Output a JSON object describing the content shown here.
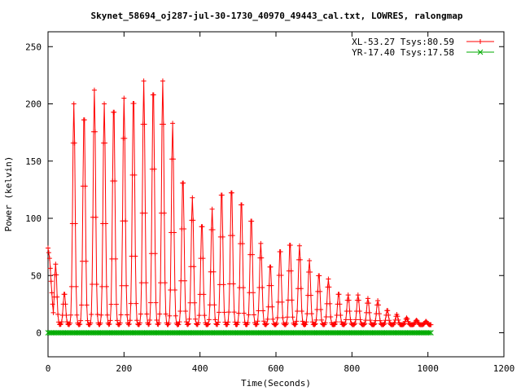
{
  "chart_data": {
    "type": "line",
    "title": "Skynet_58694_oj287-jul-30-1730_40970_49443_cal.txt, LOWRES, ralongmap",
    "xlabel": "Time(Seconds)",
    "ylabel": "Power (kelvin)",
    "xlim": [
      0,
      1200
    ],
    "ylim": [
      -21,
      263
    ],
    "x_ticks": [
      0,
      200,
      400,
      600,
      800,
      1000,
      1200
    ],
    "y_ticks": [
      0,
      50,
      100,
      150,
      200,
      250
    ],
    "legend_position": "top-right",
    "grid": false,
    "series": [
      {
        "name": "XL-53.27 Tsys:80.59",
        "color": "#ff0000",
        "marker": "plus",
        "baseline": 7,
        "sample_interval_s": 2,
        "start_trace": [
          [
            0,
            74
          ],
          [
            1,
            72
          ],
          [
            3,
            68
          ],
          [
            5,
            62
          ],
          [
            8,
            45
          ],
          [
            12,
            25
          ],
          [
            16,
            10
          ]
        ],
        "peaks": [
          {
            "x": 20,
            "peak": 60
          },
          {
            "x": 43,
            "peak": 35
          },
          {
            "x": 68,
            "peak": 200
          },
          {
            "x": 95,
            "peak": 195
          },
          {
            "x": 122,
            "peak": 212
          },
          {
            "x": 148,
            "peak": 200
          },
          {
            "x": 173,
            "peak": 202
          },
          {
            "x": 200,
            "peak": 205
          },
          {
            "x": 225,
            "peak": 210
          },
          {
            "x": 252,
            "peak": 220
          },
          {
            "x": 277,
            "peak": 218
          },
          {
            "x": 302,
            "peak": 220
          },
          {
            "x": 328,
            "peak": 183
          },
          {
            "x": 355,
            "peak": 137
          },
          {
            "x": 380,
            "peak": 118
          },
          {
            "x": 405,
            "peak": 97
          },
          {
            "x": 432,
            "peak": 108
          },
          {
            "x": 457,
            "peak": 126
          },
          {
            "x": 483,
            "peak": 128
          },
          {
            "x": 509,
            "peak": 117
          },
          {
            "x": 535,
            "peak": 102
          },
          {
            "x": 560,
            "peak": 78
          },
          {
            "x": 585,
            "peak": 60
          },
          {
            "x": 611,
            "peak": 74
          },
          {
            "x": 637,
            "peak": 80
          },
          {
            "x": 662,
            "peak": 76
          },
          {
            "x": 688,
            "peak": 63
          },
          {
            "x": 713,
            "peak": 52
          },
          {
            "x": 738,
            "peak": 47
          },
          {
            "x": 765,
            "peak": 35
          },
          {
            "x": 790,
            "peak": 33
          },
          {
            "x": 816,
            "peak": 33
          },
          {
            "x": 842,
            "peak": 30
          },
          {
            "x": 868,
            "peak": 28
          },
          {
            "x": 893,
            "peak": 20
          },
          {
            "x": 918,
            "peak": 16
          },
          {
            "x": 944,
            "peak": 13
          },
          {
            "x": 970,
            "peak": 11
          },
          {
            "x": 995,
            "peak": 10
          }
        ],
        "x_end": 1008
      },
      {
        "name": "YR-17.40 Tsys:17.58",
        "color": "#00aa00",
        "marker": "cross",
        "value": 0,
        "x_range": [
          0,
          1008
        ],
        "sample_interval_s": 4
      }
    ]
  }
}
